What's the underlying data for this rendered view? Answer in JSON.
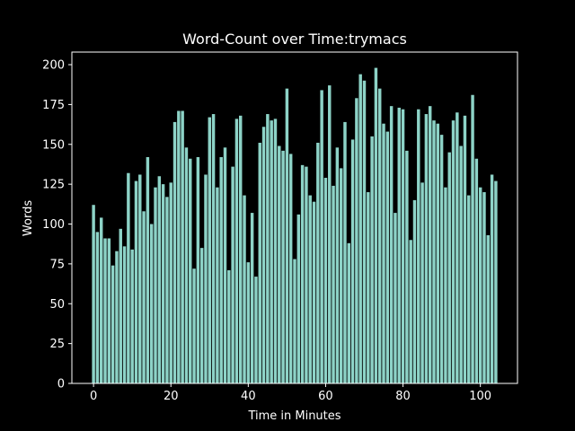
{
  "chart_data": {
    "type": "bar",
    "title": "Word-Count over Time:trymacs",
    "xlabel": "Time in Minutes",
    "ylabel": "Words",
    "x": [
      0,
      1,
      2,
      3,
      4,
      5,
      6,
      7,
      8,
      9,
      10,
      11,
      12,
      13,
      14,
      15,
      16,
      17,
      18,
      19,
      20,
      21,
      22,
      23,
      24,
      25,
      26,
      27,
      28,
      29,
      30,
      31,
      32,
      33,
      34,
      35,
      36,
      37,
      38,
      39,
      40,
      41,
      42,
      43,
      44,
      45,
      46,
      47,
      48,
      49,
      50,
      51,
      52,
      53,
      54,
      55,
      56,
      57,
      58,
      59,
      60,
      61,
      62,
      63,
      64,
      65,
      66,
      67,
      68,
      69,
      70,
      71,
      72,
      73,
      74,
      75,
      76,
      77,
      78,
      79,
      80,
      81,
      82,
      83,
      84,
      85,
      86,
      87,
      88,
      89,
      90,
      91,
      92,
      93,
      94,
      95,
      96,
      97,
      98,
      99,
      100,
      101,
      102,
      103,
      104
    ],
    "values": [
      112,
      95,
      104,
      91,
      91,
      74,
      83,
      97,
      86,
      132,
      84,
      127,
      131,
      108,
      142,
      100,
      123,
      130,
      125,
      117,
      126,
      164,
      171,
      171,
      148,
      141,
      72,
      142,
      85,
      131,
      167,
      169,
      123,
      142,
      148,
      71,
      136,
      166,
      168,
      118,
      76,
      107,
      67,
      151,
      161,
      169,
      165,
      166,
      149,
      146,
      185,
      144,
      78,
      106,
      137,
      136,
      118,
      114,
      151,
      184,
      129,
      187,
      124,
      148,
      135,
      164,
      88,
      153,
      179,
      194,
      190,
      120,
      155,
      198,
      185,
      163,
      158,
      174,
      107,
      173,
      172,
      146,
      90,
      115,
      172,
      126,
      169,
      174,
      165,
      163,
      156,
      123,
      145,
      165,
      170,
      149,
      168,
      118,
      181,
      141,
      123,
      120,
      93,
      131,
      127
    ],
    "color": "#8dd3c7",
    "bar_width": 0.8,
    "xlim": [
      -5.6,
      109.6
    ],
    "ylim": [
      0,
      207.9
    ],
    "xticks": [
      0,
      20,
      40,
      60,
      80,
      100
    ],
    "yticks": [
      0,
      25,
      50,
      75,
      100,
      125,
      150,
      175,
      200
    ]
  }
}
